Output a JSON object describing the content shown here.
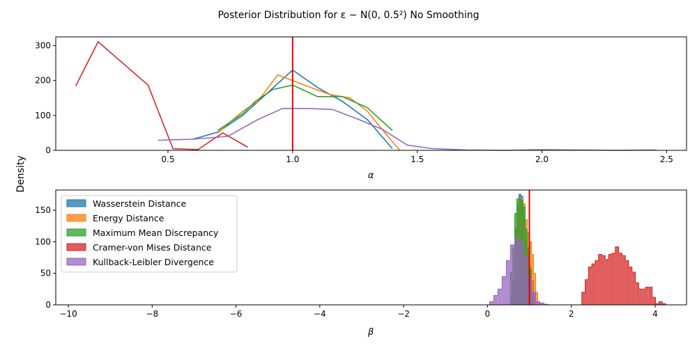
{
  "figure": {
    "suptitle": "Posterior Distribution for ε ∼ N(0, 0.5²) No Smoothing",
    "ylabel": "Density"
  },
  "colors": {
    "Wasserstein Distance": "#1f77b4",
    "Energy Distance": "#ff7f0e",
    "Maximum Mean Discrepancy": "#2ca02c",
    "Cramer-von Mises Distance": "#d62728",
    "Kullback-Leibler Divergence": "#9467bd",
    "true_value": "#e00000"
  },
  "chart_data": [
    {
      "type": "line",
      "xlabel": "α",
      "ylabel": "",
      "xlim": [
        0.05,
        2.58
      ],
      "ylim": [
        0,
        325
      ],
      "xticks": [
        0.5,
        1.0,
        1.5,
        2.0,
        2.5
      ],
      "xtick_labels": [
        "0.5",
        "1.0",
        "1.5",
        "2.0",
        "2.5"
      ],
      "yticks": [
        0,
        100,
        200,
        300
      ],
      "ytick_labels": [
        "0",
        "100",
        "200",
        "300"
      ],
      "true_value": 1.0,
      "series": [
        {
          "name": "Wasserstein Distance",
          "x": [
            0.6,
            0.7,
            0.8,
            0.9,
            1.0,
            1.1,
            1.2,
            1.3,
            1.4
          ],
          "y": [
            32,
            52,
            100,
            165,
            230,
            180,
            140,
            88,
            5
          ]
        },
        {
          "name": "Energy Distance",
          "x": [
            0.7,
            0.8,
            0.86,
            0.94,
            1.0,
            1.08,
            1.15,
            1.23,
            1.3,
            1.37,
            1.43
          ],
          "y": [
            50,
            112,
            140,
            216,
            200,
            178,
            160,
            150,
            112,
            50,
            0
          ]
        },
        {
          "name": "Maximum Mean Discrepancy",
          "x": [
            0.7,
            0.8,
            0.85,
            0.92,
            1.0,
            1.1,
            1.2,
            1.3,
            1.4
          ],
          "y": [
            57,
            105,
            140,
            174,
            187,
            154,
            154,
            122,
            57
          ]
        },
        {
          "name": "Cramer-von Mises Distance",
          "x": [
            0.13,
            0.22,
            0.42,
            0.52,
            0.62,
            0.72,
            0.82
          ],
          "y": [
            184,
            311,
            187,
            5,
            2,
            50,
            9
          ]
        },
        {
          "name": "Kullback-Leibler Divergence",
          "x": [
            0.46,
            0.6,
            0.74,
            0.86,
            0.96,
            1.06,
            1.16,
            1.26,
            1.36,
            1.46,
            1.56,
            1.7,
            1.85,
            2.0,
            2.15,
            2.3,
            2.46
          ],
          "y": [
            29,
            32,
            40,
            88,
            120,
            120,
            117,
            90,
            60,
            15,
            5,
            1,
            0,
            2,
            1,
            0,
            1
          ]
        }
      ]
    },
    {
      "type": "histogram",
      "xlabel": "β",
      "ylabel": "",
      "xlim": [
        -10.3,
        4.75
      ],
      "ylim": [
        0,
        182
      ],
      "xticks": [
        -10,
        -8,
        -6,
        -4,
        -2,
        0,
        2,
        4
      ],
      "xtick_labels": [
        "−10",
        "−8",
        "−6",
        "−4",
        "−2",
        "0",
        "2",
        "4"
      ],
      "yticks": [
        0,
        50,
        100,
        150
      ],
      "ytick_labels": [
        "0",
        "50",
        "100",
        "150"
      ],
      "true_value": 1.0,
      "legend": {
        "placement": "upper-left"
      },
      "series": [
        {
          "name": "Wasserstein Distance",
          "bin_start": 0.55,
          "bin_width": 0.05,
          "values": [
            5,
            40,
            120,
            160,
            175,
            172,
            140,
            105,
            80,
            60,
            38,
            10
          ]
        },
        {
          "name": "Energy Distance",
          "bin_start": 0.55,
          "bin_width": 0.05,
          "values": [
            8,
            40,
            95,
            145,
            165,
            170,
            160,
            135,
            115,
            100,
            80,
            50,
            20,
            5
          ]
        },
        {
          "name": "Maximum Mean Discrepancy",
          "bin_start": 0.55,
          "bin_width": 0.05,
          "values": [
            52,
            90,
            145,
            168,
            168,
            165,
            155,
            120,
            90,
            55,
            10
          ]
        },
        {
          "name": "Cramer-von Mises Distance",
          "bin_start": 2.25,
          "bin_width": 0.08,
          "values": [
            20,
            40,
            60,
            65,
            70,
            80,
            78,
            72,
            80,
            82,
            92,
            82,
            78,
            70,
            60,
            52,
            35,
            25,
            25,
            28,
            28,
            12,
            2,
            5,
            2
          ]
        },
        {
          "name": "Kullback-Leibler Divergence",
          "bin_start": 0.05,
          "bin_width": 0.1,
          "values": [
            5,
            15,
            25,
            45,
            70,
            95,
            105,
            100,
            78,
            45,
            20,
            5,
            3,
            1
          ]
        }
      ]
    }
  ]
}
